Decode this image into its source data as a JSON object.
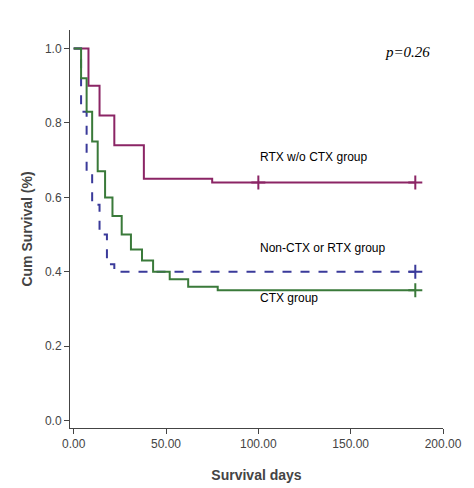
{
  "chart_data": {
    "type": "step",
    "xlabel": "Survival days",
    "ylabel": "Cum Survival (%)",
    "xlim": [
      -2,
      200
    ],
    "ylim": [
      -0.02,
      1.05
    ],
    "xticks": [
      {
        "value": 0,
        "label": "0.00"
      },
      {
        "value": 50,
        "label": "50.00"
      },
      {
        "value": 100,
        "label": "100.00"
      },
      {
        "value": 150,
        "label": "150.00"
      },
      {
        "value": 200,
        "label": "200.00"
      }
    ],
    "yticks": [
      {
        "value": 0.0,
        "label": "0.0"
      },
      0.2,
      0.4,
      0.6,
      0.8,
      {
        "value": 1.0,
        "label": "1.0"
      }
    ],
    "grid": false,
    "series": [
      {
        "type": "line",
        "color": "#8B2565",
        "line_style": "solid",
        "x": [
          0,
          0,
          8,
          8,
          14,
          14,
          22,
          22,
          38,
          38,
          75,
          75,
          185
        ],
        "values": [
          1.0,
          1.0,
          1.0,
          0.9,
          0.9,
          0.82,
          0.82,
          0.74,
          0.74,
          0.65,
          0.65,
          0.64,
          0.64
        ]
      },
      {
        "type": "scatter",
        "color": "#8B2565",
        "marker": "cross",
        "x": [
          100,
          185
        ],
        "values": [
          0.64,
          0.64
        ]
      },
      {
        "type": "line",
        "color": "#3A3A9A",
        "line_style": "dashed",
        "x": [
          0,
          0,
          4,
          4,
          7,
          7,
          10,
          10,
          14,
          14,
          18,
          18,
          22,
          22,
          185
        ],
        "values": [
          1.0,
          1.0,
          0.83,
          0.83,
          0.67,
          0.67,
          0.58,
          0.58,
          0.5,
          0.5,
          0.42,
          0.42,
          0.4,
          0.4,
          0.4
        ]
      },
      {
        "type": "scatter",
        "color": "#3A3A9A",
        "marker": "cross",
        "x": [
          185
        ],
        "values": [
          0.4
        ]
      },
      {
        "type": "line",
        "color": "#3A7A3A",
        "line_style": "solid",
        "x": [
          0,
          0,
          4,
          4,
          7,
          7,
          10,
          10,
          13,
          13,
          17,
          17,
          21,
          21,
          26,
          26,
          31,
          31,
          37,
          37,
          43,
          43,
          52,
          52,
          62,
          62,
          78,
          78,
          90,
          90,
          185
        ],
        "values": [
          1.0,
          1.0,
          0.92,
          0.92,
          0.83,
          0.83,
          0.75,
          0.75,
          0.67,
          0.67,
          0.6,
          0.6,
          0.55,
          0.55,
          0.5,
          0.5,
          0.46,
          0.46,
          0.43,
          0.43,
          0.4,
          0.4,
          0.38,
          0.38,
          0.36,
          0.36,
          0.35,
          0.35,
          0.35,
          0.35,
          0.35
        ]
      },
      {
        "type": "scatter",
        "color": "#3A7A3A",
        "marker": "cross",
        "x": [
          185
        ],
        "values": [
          0.35
        ]
      }
    ],
    "annotations": [
      {
        "x": 100,
        "y": 0.685,
        "text": "RTX w/o CTX group"
      },
      {
        "x": 100,
        "y": 0.44,
        "text": "Non-CTX or RTX group"
      },
      {
        "x": 100,
        "y": 0.305,
        "text": "CTX group"
      },
      {
        "text": "p=0.26"
      }
    ]
  }
}
